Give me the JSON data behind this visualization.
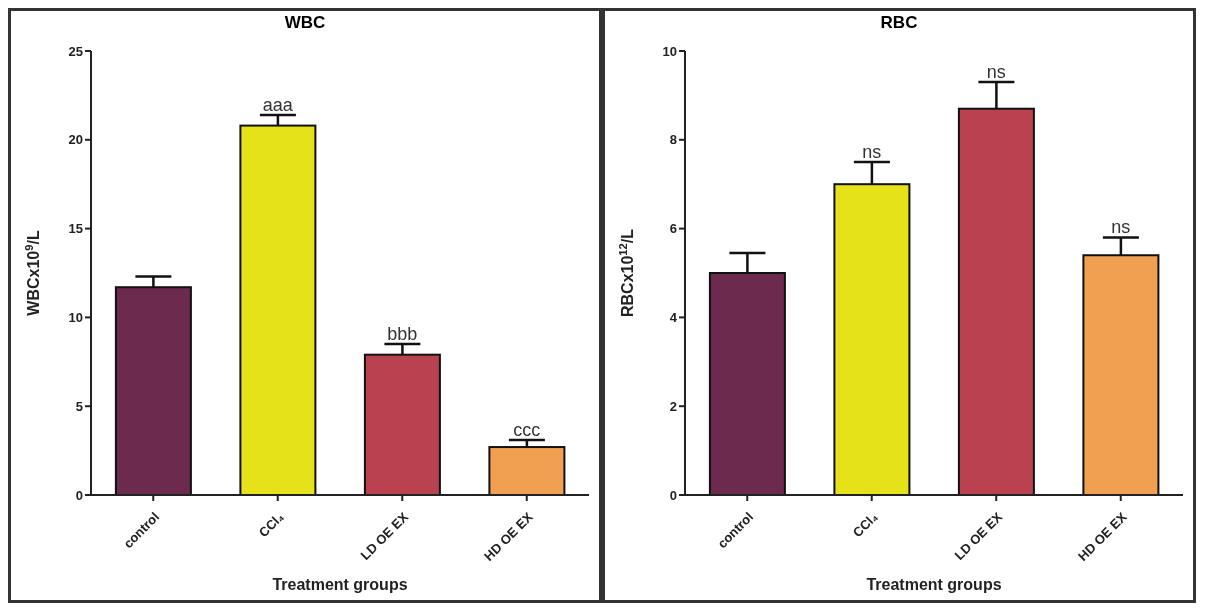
{
  "chart_data": [
    {
      "type": "bar",
      "title": "WBC",
      "xlabel": "Treatment groups",
      "ylabel": "WBCx10$^{9}$/L",
      "categories": [
        "control",
        "CCl₄",
        "LD OE EX",
        "HD OE EX"
      ],
      "values": [
        11.7,
        20.8,
        7.9,
        2.7
      ],
      "errors": [
        0.6,
        0.6,
        0.6,
        0.4
      ],
      "colors": [
        "#6b2a4e",
        "#e6e21a",
        "#b8434f",
        "#f0a050"
      ],
      "ylim": [
        0,
        25
      ],
      "yticks": [
        0,
        5,
        10,
        15,
        20,
        25
      ],
      "grid": false,
      "legend": false,
      "annotations": [
        {
          "text": "aaa",
          "x": "CCl₄",
          "y": 21.4
        },
        {
          "text": "bbb",
          "x": "LD OE EX",
          "y": 8.5
        },
        {
          "text": "ccc",
          "x": "HD OE EX",
          "y": 3.1
        }
      ]
    },
    {
      "type": "bar",
      "title": "RBC",
      "xlabel": "Treatment groups",
      "ylabel": "RBCx10$^{12}$/L",
      "categories": [
        "control",
        "CCl₄",
        "LD OE EX",
        "HD OE EX"
      ],
      "values": [
        5.0,
        7.0,
        8.7,
        5.4
      ],
      "errors": [
        0.45,
        0.5,
        0.6,
        0.4
      ],
      "colors": [
        "#6b2a4e",
        "#e6e21a",
        "#b8434f",
        "#f0a050"
      ],
      "ylim": [
        0,
        10
      ],
      "yticks": [
        0,
        2,
        4,
        6,
        8,
        10
      ],
      "grid": false,
      "legend": false,
      "annotations": [
        {
          "text": "ns",
          "x": "CCl₄",
          "y": 7.5
        },
        {
          "text": "ns",
          "x": "LD OE EX",
          "y": 9.3
        },
        {
          "text": "ns",
          "x": "HD OE EX",
          "y": 5.8
        }
      ]
    }
  ]
}
